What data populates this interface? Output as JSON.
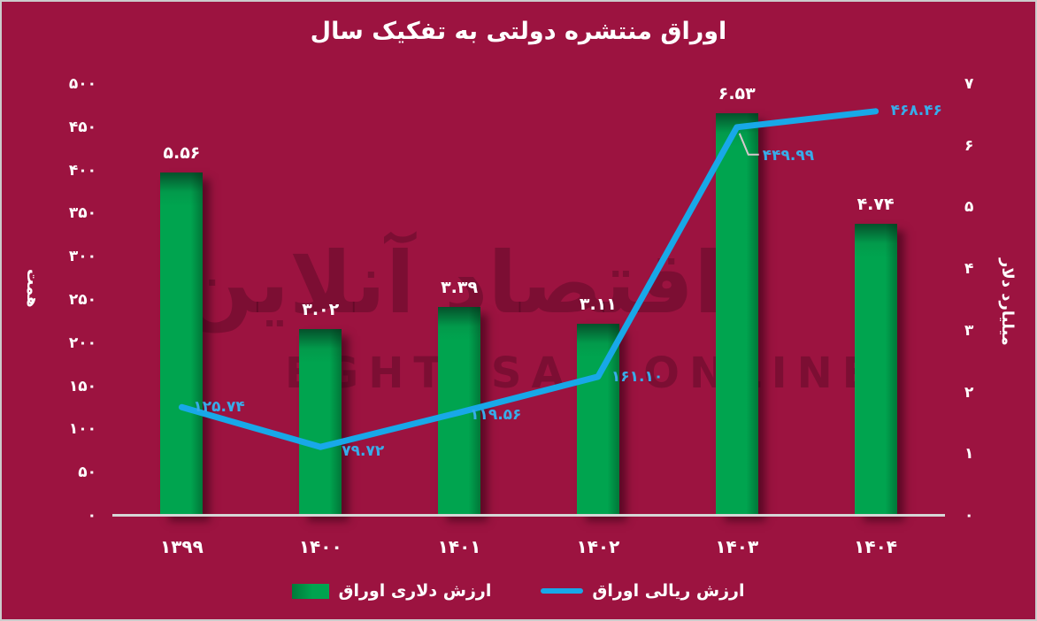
{
  "title": "اوراق منتشره دولتی به تفکیک سال",
  "watermark": {
    "fa": "اقتصاد آنلاین",
    "en": "EGHTESAD ONLINE"
  },
  "colors": {
    "background": "#9C1340",
    "bar": "#00A44F",
    "line": "#18A8E8",
    "text": "#FFFFFF",
    "axis_line": "#D6D6D6",
    "line_label": "#38ACE9",
    "watermark": "rgba(35,0,14,0.26)"
  },
  "axes": {
    "left": {
      "title": "همت",
      "ticks": [
        "۵۰۰",
        "۴۵۰",
        "۴۰۰",
        "۳۵۰",
        "۳۰۰",
        "۲۵۰",
        "۲۰۰",
        "۱۵۰",
        "۱۰۰",
        "۵۰",
        "۰"
      ]
    },
    "right": {
      "title": "میلیارد دلار",
      "ticks": [
        "۷",
        "۶",
        "۵",
        "۴",
        "۳",
        "۲",
        "۱",
        "۰"
      ]
    }
  },
  "legend": [
    {
      "type": "bar",
      "label": "ارزش دلاری اوراق",
      "color": "#00A44F"
    },
    {
      "type": "line",
      "label": "ارزش ریالی اوراق",
      "color": "#18A8E8"
    }
  ],
  "chart_data": {
    "type": "bar+line combo",
    "title": "اوراق منتشره دولتی به تفکیک سال",
    "categories": [
      "۱۳۹۹",
      "۱۴۰۰",
      "۱۴۰۱",
      "۱۴۰۲",
      "۱۴۰۳",
      "۱۴۰۴"
    ],
    "series": [
      {
        "name": "ارزش دلاری اوراق",
        "type": "bar",
        "axis": "right",
        "values": [
          5.56,
          3.02,
          3.39,
          3.11,
          6.53,
          4.74
        ],
        "labels": [
          "۵.۵۶",
          "۳.۰۲",
          "۳.۳۹",
          "۳.۱۱",
          "۶.۵۳",
          "۴.۷۴"
        ]
      },
      {
        "name": "ارزش ریالی اوراق",
        "type": "line",
        "axis": "left",
        "values": [
          125.74,
          79.72,
          119.56,
          161.1,
          449.99,
          468.46
        ],
        "labels": [
          "۱۲۵.۷۴",
          "۷۹.۷۲",
          "۱۱۹.۵۶",
          "۱۶۱.۱۰",
          "۴۴۹.۹۹",
          "۴۶۸.۴۶"
        ]
      }
    ],
    "left_ylabel": "همت",
    "right_ylabel": "میلیارد دلار",
    "left_ylim": [
      0,
      500
    ],
    "right_ylim": [
      0,
      7
    ],
    "grid": false,
    "legend_position": "bottom"
  }
}
